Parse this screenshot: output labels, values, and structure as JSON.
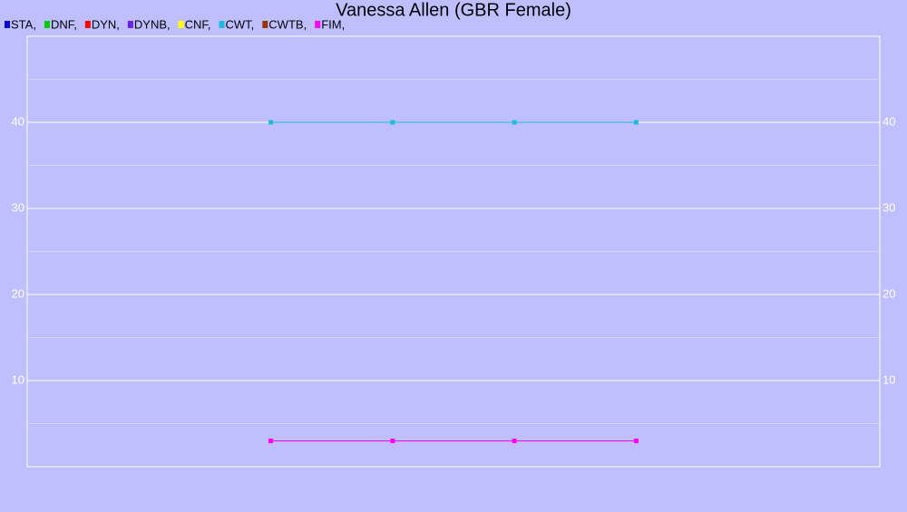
{
  "chart_data": {
    "type": "line",
    "title": "Vanessa Allen (GBR Female)",
    "x": [
      2,
      3,
      4,
      5
    ],
    "xlim": [
      0,
      7
    ],
    "ylim": [
      0,
      50
    ],
    "yticks": [
      10,
      20,
      30,
      40
    ],
    "minor_yticks": [
      5,
      15,
      25,
      35,
      45
    ],
    "grid": true,
    "series": [
      {
        "name": "STA,",
        "color": "#0000dd",
        "values": [
          null,
          null,
          null,
          null
        ]
      },
      {
        "name": "DNF,",
        "color": "#00cc00",
        "values": [
          null,
          null,
          null,
          null
        ]
      },
      {
        "name": "DYN,",
        "color": "#ff0000",
        "values": [
          null,
          null,
          null,
          null
        ]
      },
      {
        "name": "DYNB,",
        "color": "#6622ee",
        "values": [
          null,
          null,
          null,
          null
        ]
      },
      {
        "name": "CNF,",
        "color": "#ffff00",
        "values": [
          null,
          null,
          null,
          null
        ]
      },
      {
        "name": "CWT,",
        "color": "#22bbdd",
        "values": [
          40,
          40,
          40,
          40
        ]
      },
      {
        "name": "CWTB,",
        "color": "#993300",
        "values": [
          null,
          null,
          null,
          null
        ]
      },
      {
        "name": "FIM,",
        "color": "#ff00ff",
        "values": [
          3,
          3,
          3,
          3
        ]
      }
    ]
  }
}
